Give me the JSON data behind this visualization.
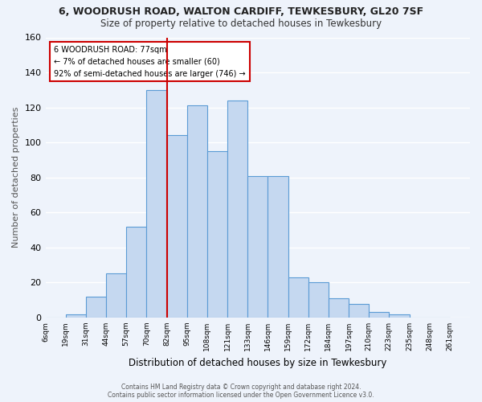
{
  "title1": "6, WOODRUSH ROAD, WALTON CARDIFF, TEWKESBURY, GL20 7SF",
  "title2": "Size of property relative to detached houses in Tewkesbury",
  "xlabel": "Distribution of detached houses by size in Tewkesbury",
  "ylabel": "Number of detached properties",
  "tick_labels": [
    "6sqm",
    "19sqm",
    "31sqm",
    "44sqm",
    "57sqm",
    "70sqm",
    "82sqm",
    "95sqm",
    "108sqm",
    "121sqm",
    "133sqm",
    "146sqm",
    "159sqm",
    "172sqm",
    "184sqm",
    "197sqm",
    "210sqm",
    "223sqm",
    "235sqm",
    "248sqm",
    "261sqm"
  ],
  "values": [
    0,
    2,
    12,
    25,
    52,
    130,
    104,
    121,
    95,
    124,
    81,
    81,
    23,
    20,
    11,
    8,
    3,
    2,
    0,
    0
  ],
  "bar_color": "#c5d8f0",
  "bar_edge_color": "#5b9bd5",
  "bg_color": "#eef3fb",
  "grid_color": "#d0ddf0",
  "annotation_line1": "6 WOODRUSH ROAD: 77sqm",
  "annotation_line2": "← 7% of detached houses are smaller (60)",
  "annotation_line3": "92% of semi-detached houses are larger (746) →",
  "vline_index": 6,
  "vline_color": "#cc0000",
  "ylim_max": 160,
  "yticks": [
    0,
    20,
    40,
    60,
    80,
    100,
    120,
    140,
    160
  ],
  "footer": "Contains HM Land Registry data © Crown copyright and database right 2024.\nContains public sector information licensed under the Open Government Licence v3.0."
}
